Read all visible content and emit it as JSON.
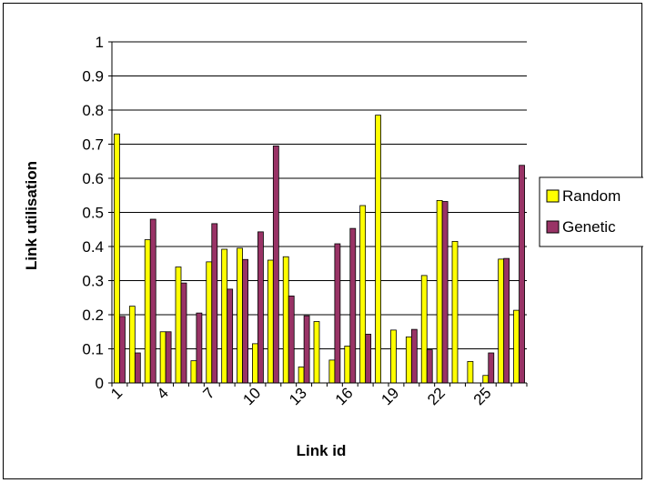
{
  "chart_data": {
    "type": "bar",
    "title": "",
    "xlabel": "Link id",
    "ylabel": "Link utilisation",
    "ylim": [
      0,
      1
    ],
    "yticks": [
      "0",
      "0.1",
      "0.2",
      "0.3",
      "0.4",
      "0.5",
      "0.6",
      "0.7",
      "0.8",
      "0.9",
      "1"
    ],
    "categories": [
      1,
      2,
      3,
      4,
      5,
      6,
      7,
      8,
      9,
      10,
      11,
      12,
      13,
      14,
      15,
      16,
      17,
      18,
      19,
      20,
      21,
      22,
      23,
      24,
      25,
      26,
      27
    ],
    "xtick_labels": [
      "1",
      "4",
      "7",
      "10",
      "13",
      "16",
      "19",
      "22",
      "25"
    ],
    "grid": "horizontal",
    "legend_position": "right",
    "series": [
      {
        "name": "Random",
        "color": "#ffff00",
        "values": [
          0.73,
          0.225,
          0.42,
          0.15,
          0.34,
          0.065,
          0.355,
          0.392,
          0.395,
          0.115,
          0.36,
          0.37,
          0.047,
          0.18,
          0.067,
          0.108,
          0.52,
          0.785,
          0.155,
          0.135,
          0.315,
          0.535,
          0.415,
          0.063,
          0.022,
          0.363,
          0.213
        ]
      },
      {
        "name": "Genetic",
        "color": "#993366",
        "values": [
          0.195,
          0.088,
          0.48,
          0.15,
          0.293,
          0.205,
          0.467,
          0.275,
          0.362,
          0.443,
          0.695,
          0.255,
          0.197,
          0.0,
          0.408,
          0.453,
          0.143,
          0.0,
          0.0,
          0.157,
          0.097,
          0.532,
          0.0,
          0.0,
          0.088,
          0.365,
          0.638
        ]
      }
    ]
  }
}
